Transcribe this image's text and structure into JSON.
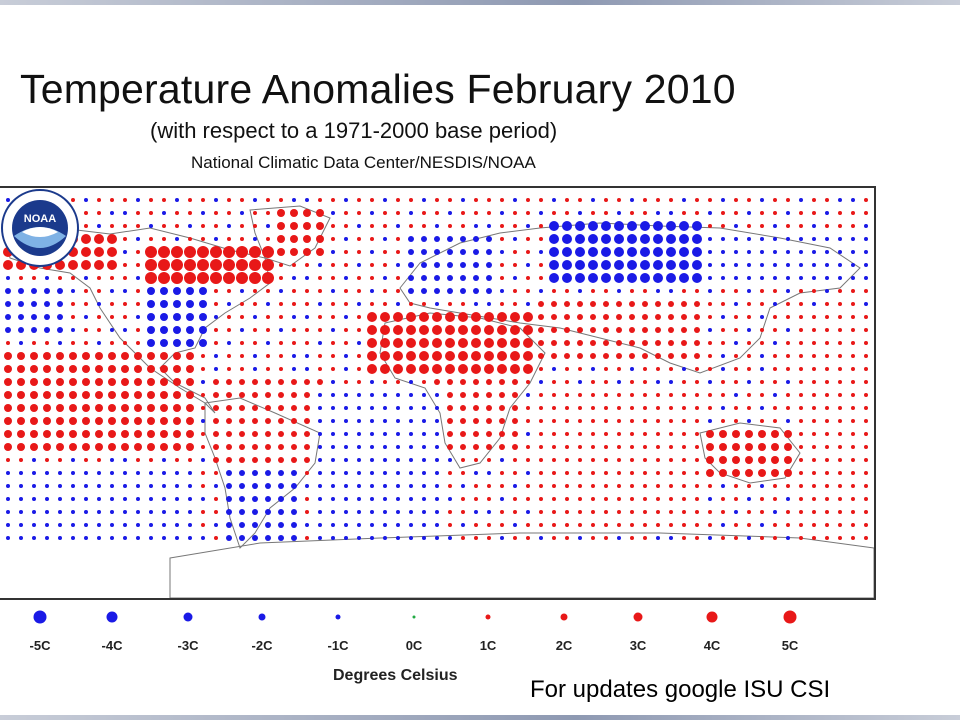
{
  "slide": {
    "title": "Temperature Anomalies February 2010",
    "subtitle": "(with respect to a 1971-2000 base period)",
    "source": "National Climatic Data Center/NESDIS/NOAA",
    "footer_note": "For updates google ISU CSI"
  },
  "legend": {
    "units_label": "Degrees Celsius",
    "items": [
      {
        "label": "-5C",
        "value": -5,
        "color": "#1a1ae6"
      },
      {
        "label": "-4C",
        "value": -4,
        "color": "#1a1ae6"
      },
      {
        "label": "-3C",
        "value": -3,
        "color": "#1a1ae6"
      },
      {
        "label": "-2C",
        "value": -2,
        "color": "#1a1ae6"
      },
      {
        "label": "-1C",
        "value": -1,
        "color": "#1a1ae6"
      },
      {
        "label": "0C",
        "value": 0,
        "color": "#22aa44"
      },
      {
        "label": "1C",
        "value": 1,
        "color": "#e81818"
      },
      {
        "label": "2C",
        "value": 2,
        "color": "#e81818"
      },
      {
        "label": "3C",
        "value": 3,
        "color": "#e81818"
      },
      {
        "label": "4C",
        "value": 4,
        "color": "#e81818"
      },
      {
        "label": "5C",
        "value": 5,
        "color": "#e81818"
      }
    ]
  },
  "map": {
    "anomaly_regions": [
      {
        "region": "Alaska / NW Canada",
        "anomaly": 4
      },
      {
        "region": "Eastern Canada / Hudson Bay",
        "anomaly": 5
      },
      {
        "region": "Greenland",
        "anomaly": 3
      },
      {
        "region": "Central / Southeastern United States",
        "anomaly": -3
      },
      {
        "region": "Europe / Northern Russia",
        "anomaly": -2
      },
      {
        "region": "Siberia",
        "anomaly": -4
      },
      {
        "region": "North Africa / Middle East",
        "anomaly": 4
      },
      {
        "region": "South America",
        "anomaly": 2
      },
      {
        "region": "Southern Africa",
        "anomaly": 2
      },
      {
        "region": "Australia",
        "anomaly": 3
      },
      {
        "region": "Southern South America",
        "anomaly": -2
      }
    ]
  },
  "logo": {
    "text": "NOAA"
  }
}
